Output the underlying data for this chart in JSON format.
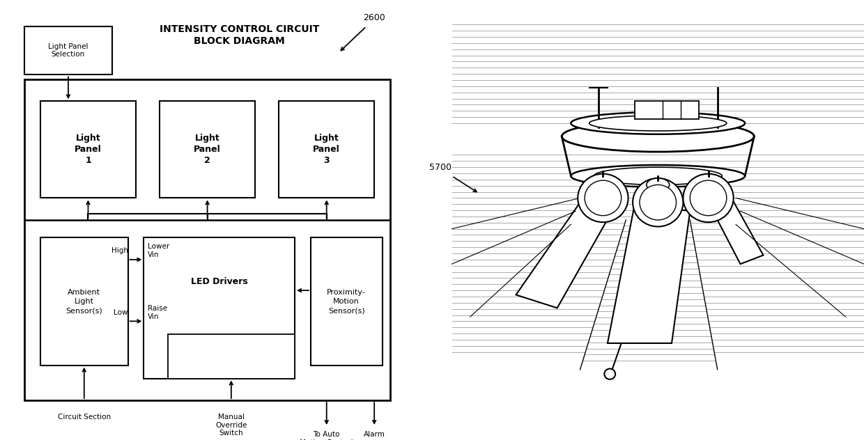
{
  "bg_color": "#ffffff",
  "title": "INTENSITY CONTROL CIRCUIT\nBLOCK DIAGRAM",
  "ref_num_left": "2600",
  "ref_num_right": "5700",
  "light_panels": [
    "Light\nPanel\n1",
    "Light\nPanel\n2",
    "Light\nPanel\n3"
  ],
  "ambient_sensor": "Ambient\nLight\nSensor(s)",
  "led_drivers": "LED Drivers",
  "proximity_sensor": "Proximity-\nMotion\nSensor(s)",
  "manual_override": "Manual Override",
  "high_label": "High",
  "low_label": "Low",
  "lower_vin": "Lower\nVin",
  "raise_vin": "Raise\nVin",
  "circuit_section": "Circuit Section",
  "manual_override_switch": "Manual\nOverride\nSwitch",
  "to_auto": "To Auto\nMotion Control",
  "alarm": "Alarm",
  "lp_selector": "Light Panel\nSelection"
}
